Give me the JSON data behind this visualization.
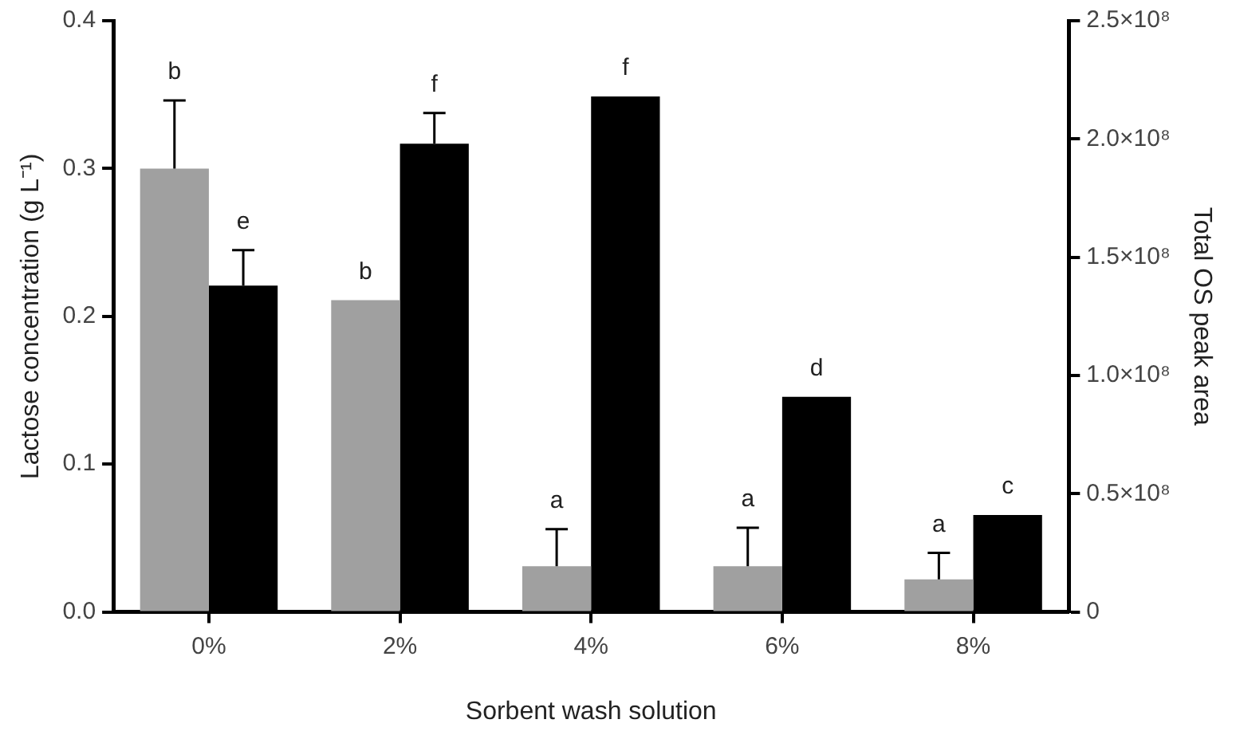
{
  "chart_data": {
    "type": "bar",
    "categories": [
      "0%",
      "2%",
      "4%",
      "6%",
      "8%"
    ],
    "xlabel": "Sorbent wash solution",
    "ylabel": "Lactose concentration (g L⁻¹)",
    "y2label": "Total OS peak area",
    "series": [
      {
        "color": "#a0a0a0",
        "values": [
          0.3,
          0.211,
          0.031,
          0.031,
          0.022
        ],
        "errors": [
          [
            0.3,
            0.346
          ],
          null,
          [
            0.031,
            0.056
          ],
          [
            0.031,
            0.057
          ],
          [
            0.022,
            0.04
          ]
        ]
      },
      {
        "color": "#000000",
        "axis": "y2",
        "values": [
          138000000,
          198000000,
          218000000,
          91000000,
          41000000
        ],
        "errors": [
          [
            138000000,
            153000000
          ],
          [
            198000000,
            211000000
          ],
          null,
          null,
          null
        ]
      }
    ],
    "ylim": [
      0,
      0.4
    ],
    "yticks": [
      {
        "value": 0,
        "label": "0.0"
      },
      0.1,
      0.2,
      0.3,
      0.4
    ],
    "y2lim": [
      0,
      250000000
    ],
    "y2ticks": [
      {
        "value": 0,
        "label": "0"
      },
      {
        "value": 50000000,
        "label": "0.5×10⁸"
      },
      {
        "value": 100000000,
        "label": "1.0×10⁸"
      },
      {
        "value": 150000000,
        "label": "1.5×10⁸"
      },
      {
        "value": 200000000,
        "label": "2.0×10⁸"
      },
      {
        "value": 250000000,
        "label": "2.5×10⁸"
      }
    ],
    "annotations": [
      "b",
      "e",
      "b",
      "f",
      "a",
      "f",
      "a",
      "d",
      "a",
      "c"
    ],
    "grid": false,
    "legend": false
  }
}
